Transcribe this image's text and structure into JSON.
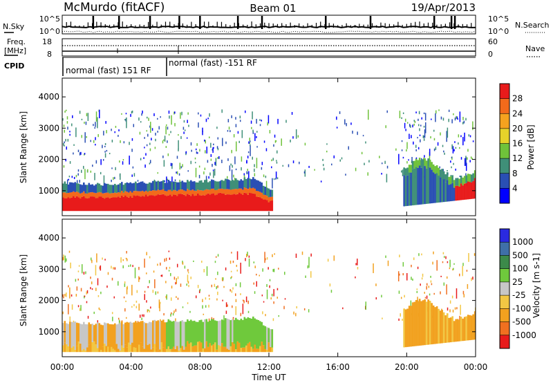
{
  "header": {
    "station": "McMurdo (fitACF)",
    "beam": "Beam 01",
    "date": "19/Apr/2013"
  },
  "top_panels": {
    "nsky_label": "N.Sky",
    "nsky_ticks": [
      "10^5",
      "10^0"
    ],
    "nsearch_label": "N.Search",
    "nsearch_ticks": [
      "10^5",
      "10^0"
    ],
    "freq_label_1": "Freq.",
    "freq_label_2": "[MHz]",
    "freq_ticks": [
      "18",
      "8"
    ],
    "nave_label": "Nave",
    "nave_ticks": [
      "60",
      "0"
    ],
    "cpid_label": "CPID",
    "cpid_segments": [
      {
        "text": "normal (fast) 151 RF",
        "start_hour": 0,
        "end_hour": 6.0
      },
      {
        "text": "normal (fast) -151 RF",
        "start_hour": 6.0,
        "end_hour": 24
      }
    ]
  },
  "colors": {
    "power": [
      "#0000ff",
      "#2a4fb4",
      "#3f8f78",
      "#6fc23a",
      "#e6d22a",
      "#f5a21f",
      "#f26a1b",
      "#e81b1b"
    ],
    "velocity": [
      "#2a2ae0",
      "#3f6fa8",
      "#3c8a4a",
      "#6fc93c",
      "#c7c7c7",
      "#f2c744",
      "#f2a11f",
      "#f07020",
      "#e81b1b"
    ]
  },
  "chart_data": [
    {
      "type": "heatmap",
      "title": "",
      "ylabel": "Slant Range [km]",
      "xlabel": "",
      "xlim": [
        0,
        24
      ],
      "ylim": [
        200,
        4600
      ],
      "yticks": [
        "1000",
        "2000",
        "3000",
        "4000"
      ],
      "colorbar_label": "Power [dB]",
      "colorbar_ticks": [
        "4",
        "8",
        "12",
        "16",
        "20",
        "24",
        "28"
      ],
      "series": [
        {
          "name": "",
          "x_hours": [
            0,
            2,
            4,
            6,
            8,
            10,
            11,
            12
          ],
          "core_top_km": [
            800,
            780,
            820,
            860,
            880,
            900,
            900,
            650
          ]
        },
        {
          "name": "",
          "x_hours": [
            0,
            2,
            4,
            6,
            8,
            10,
            11,
            12
          ],
          "echo_top_km": [
            1250,
            1200,
            1250,
            1300,
            1300,
            1350,
            1400,
            1050
          ]
        }
      ]
    },
    {
      "type": "heatmap",
      "title": "",
      "ylabel": "Slant Range [km]",
      "xlabel": "Time UT",
      "xlim": [
        0,
        24
      ],
      "ylim": [
        200,
        4600
      ],
      "yticks": [
        "1000",
        "2000",
        "3000",
        "4000"
      ],
      "xticks": [
        "00:00",
        "04:00",
        "08:00",
        "12:00",
        "16:00",
        "20:00",
        "00:00"
      ],
      "colorbar_label": "Velocity [m s-1]",
      "colorbar_ticks": [
        "1000",
        "500",
        "100",
        "25",
        "-25",
        "-100",
        "-500",
        "-1000"
      ]
    }
  ]
}
